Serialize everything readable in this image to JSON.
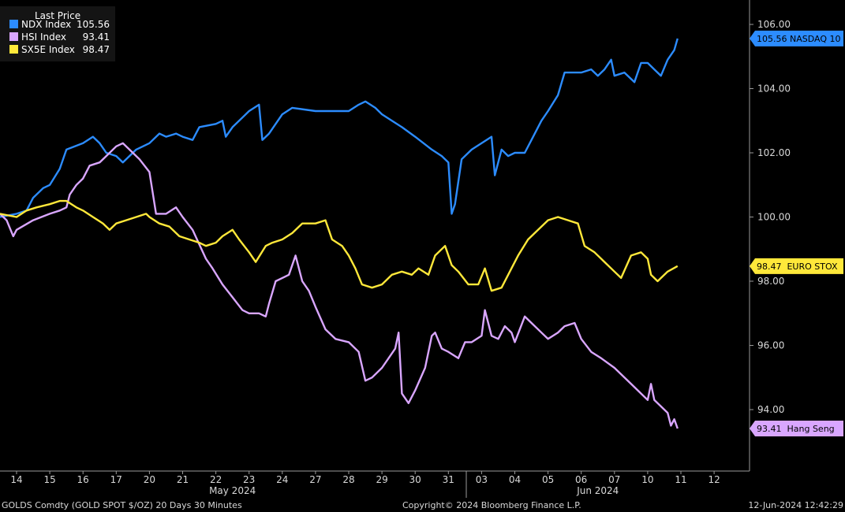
{
  "chart_data": {
    "type": "line",
    "legend": {
      "title": "Last Price",
      "placement": "top-left",
      "entries": [
        {
          "name": "NDX Index",
          "value": "105.56",
          "color": "#2c8cff"
        },
        {
          "name": "HSI Index",
          "value": "93.41",
          "color": "#d9a6ff"
        },
        {
          "name": "SX5E Index",
          "value": "98.47",
          "color": "#ffe83a"
        }
      ]
    },
    "y_axis": {
      "position": "right",
      "range": [
        92.2,
        106.6
      ],
      "ticks": [
        "106.00",
        "104.00",
        "102.00",
        "100.00",
        "98.00",
        "96.00",
        "94.00"
      ],
      "tick_values": [
        106,
        104,
        102,
        100,
        98,
        96,
        94
      ]
    },
    "x_axis": {
      "ticks": [
        "14",
        "15",
        "16",
        "17",
        "20",
        "21",
        "22",
        "23",
        "24",
        "27",
        "28",
        "29",
        "30",
        "31",
        "03",
        "04",
        "05",
        "06",
        "07",
        "10",
        "11",
        "12"
      ],
      "months": [
        {
          "label": "May 2024",
          "from": 0,
          "to": 13
        },
        {
          "label": "Jun 2024",
          "from": 14,
          "to": 21
        }
      ]
    },
    "tags": [
      {
        "text": "105.56 NASDAQ 10",
        "value": 105.56,
        "bg": "#2c8cff",
        "fg": "#ffffff"
      },
      {
        "text": "98.47  EURO STOX",
        "value": 98.47,
        "bg": "#ffe83a",
        "fg": "#000000"
      },
      {
        "text": "93.41  Hang Seng",
        "value": 93.41,
        "bg": "#d9a6ff",
        "fg": "#000000"
      }
    ],
    "series": [
      {
        "name": "NDX Index",
        "color": "#2c8cff",
        "points": [
          [
            -0.5,
            100
          ],
          [
            0,
            100.1
          ],
          [
            0.3,
            100.2
          ],
          [
            0.5,
            100.6
          ],
          [
            0.8,
            100.9
          ],
          [
            1,
            101
          ],
          [
            1.3,
            101.5
          ],
          [
            1.5,
            102.1
          ],
          [
            2,
            102.3
          ],
          [
            2.3,
            102.5
          ],
          [
            2.5,
            102.3
          ],
          [
            2.7,
            102.0
          ],
          [
            3,
            101.9
          ],
          [
            3.2,
            101.7
          ],
          [
            3.4,
            101.9
          ],
          [
            3.6,
            102.1
          ],
          [
            4,
            102.3
          ],
          [
            4.3,
            102.6
          ],
          [
            4.5,
            102.5
          ],
          [
            4.8,
            102.6
          ],
          [
            5,
            102.5
          ],
          [
            5.3,
            102.4
          ],
          [
            5.5,
            102.8
          ],
          [
            6,
            102.9
          ],
          [
            6.2,
            103.0
          ],
          [
            6.3,
            102.5
          ],
          [
            6.5,
            102.8
          ],
          [
            6.8,
            103.1
          ],
          [
            7,
            103.3
          ],
          [
            7.3,
            103.5
          ],
          [
            7.4,
            102.4
          ],
          [
            7.6,
            102.6
          ],
          [
            8,
            103.2
          ],
          [
            8.3,
            103.4
          ],
          [
            9,
            103.3
          ],
          [
            9.5,
            103.3
          ],
          [
            10,
            103.3
          ],
          [
            10.3,
            103.5
          ],
          [
            10.5,
            103.6
          ],
          [
            10.8,
            103.4
          ],
          [
            11,
            103.2
          ],
          [
            11.3,
            103.0
          ],
          [
            11.6,
            102.8
          ],
          [
            12,
            102.5
          ],
          [
            12.5,
            102.1
          ],
          [
            12.8,
            101.9
          ],
          [
            13,
            101.7
          ],
          [
            13.1,
            100.1
          ],
          [
            13.2,
            100.4
          ],
          [
            13.4,
            101.8
          ],
          [
            13.7,
            102.1
          ],
          [
            14,
            102.3
          ],
          [
            14.3,
            102.5
          ],
          [
            14.4,
            101.3
          ],
          [
            14.6,
            102.1
          ],
          [
            14.8,
            101.9
          ],
          [
            15,
            102.0
          ],
          [
            15.3,
            102.0
          ],
          [
            15.5,
            102.4
          ],
          [
            15.8,
            103.0
          ],
          [
            16,
            103.3
          ],
          [
            16.3,
            103.8
          ],
          [
            16.5,
            104.5
          ],
          [
            16.8,
            104.5
          ],
          [
            17,
            104.5
          ],
          [
            17.3,
            104.6
          ],
          [
            17.5,
            104.4
          ],
          [
            17.7,
            104.6
          ],
          [
            17.9,
            104.9
          ],
          [
            18,
            104.4
          ],
          [
            18.3,
            104.5
          ],
          [
            18.6,
            104.2
          ],
          [
            18.8,
            104.8
          ],
          [
            19,
            104.8
          ],
          [
            19.2,
            104.6
          ],
          [
            19.4,
            104.4
          ],
          [
            19.6,
            104.9
          ],
          [
            19.8,
            105.2
          ],
          [
            19.9,
            105.56
          ]
        ]
      },
      {
        "name": "HSI Index",
        "color": "#d9a6ff",
        "points": [
          [
            -0.5,
            100.1
          ],
          [
            -0.3,
            99.9
          ],
          [
            -0.1,
            99.4
          ],
          [
            0,
            99.6
          ],
          [
            0.5,
            99.9
          ],
          [
            1,
            100.1
          ],
          [
            1.3,
            100.2
          ],
          [
            1.5,
            100.3
          ],
          [
            1.6,
            100.7
          ],
          [
            1.8,
            101.0
          ],
          [
            2,
            101.2
          ],
          [
            2.2,
            101.6
          ],
          [
            2.5,
            101.7
          ],
          [
            2.7,
            101.9
          ],
          [
            3,
            102.2
          ],
          [
            3.2,
            102.3
          ],
          [
            3.4,
            102.1
          ],
          [
            3.7,
            101.8
          ],
          [
            4,
            101.4
          ],
          [
            4.2,
            100.1
          ],
          [
            4.5,
            100.1
          ],
          [
            4.8,
            100.3
          ],
          [
            5,
            100.0
          ],
          [
            5.3,
            99.6
          ],
          [
            5.7,
            98.7
          ],
          [
            5.9,
            98.4
          ],
          [
            6.2,
            97.9
          ],
          [
            6.5,
            97.5
          ],
          [
            6.8,
            97.1
          ],
          [
            7,
            97.0
          ],
          [
            7.3,
            97.0
          ],
          [
            7.5,
            96.9
          ],
          [
            7.6,
            97.3
          ],
          [
            7.8,
            98.0
          ],
          [
            8,
            98.1
          ],
          [
            8.2,
            98.2
          ],
          [
            8.4,
            98.8
          ],
          [
            8.6,
            98.0
          ],
          [
            8.8,
            97.7
          ],
          [
            9,
            97.2
          ],
          [
            9.3,
            96.5
          ],
          [
            9.6,
            96.2
          ],
          [
            10,
            96.1
          ],
          [
            10.3,
            95.8
          ],
          [
            10.5,
            94.9
          ],
          [
            10.7,
            95.0
          ],
          [
            11,
            95.3
          ],
          [
            11.4,
            95.9
          ],
          [
            11.5,
            96.4
          ],
          [
            11.6,
            94.5
          ],
          [
            11.8,
            94.2
          ],
          [
            12,
            94.6
          ],
          [
            12.3,
            95.3
          ],
          [
            12.5,
            96.3
          ],
          [
            12.6,
            96.4
          ],
          [
            12.8,
            95.9
          ],
          [
            13,
            95.8
          ],
          [
            13.3,
            95.6
          ],
          [
            13.5,
            96.1
          ],
          [
            13.7,
            96.1
          ],
          [
            14,
            96.3
          ],
          [
            14.1,
            97.1
          ],
          [
            14.3,
            96.3
          ],
          [
            14.5,
            96.2
          ],
          [
            14.7,
            96.6
          ],
          [
            14.9,
            96.4
          ],
          [
            15,
            96.1
          ],
          [
            15.3,
            96.9
          ],
          [
            15.5,
            96.7
          ],
          [
            15.8,
            96.4
          ],
          [
            16,
            96.2
          ],
          [
            16.3,
            96.4
          ],
          [
            16.5,
            96.6
          ],
          [
            16.8,
            96.7
          ],
          [
            17,
            96.2
          ],
          [
            17.3,
            95.8
          ],
          [
            17.6,
            95.6
          ],
          [
            18,
            95.3
          ],
          [
            18.5,
            94.8
          ],
          [
            18.8,
            94.5
          ],
          [
            19,
            94.3
          ],
          [
            19.1,
            94.8
          ],
          [
            19.2,
            94.3
          ],
          [
            19.4,
            94.1
          ],
          [
            19.6,
            93.9
          ],
          [
            19.7,
            93.5
          ],
          [
            19.8,
            93.7
          ],
          [
            19.9,
            93.41
          ]
        ]
      },
      {
        "name": "SX5E Index",
        "color": "#ffe83a",
        "points": [
          [
            -0.5,
            100.1
          ],
          [
            0,
            100.0
          ],
          [
            0.3,
            100.2
          ],
          [
            0.6,
            100.3
          ],
          [
            1,
            100.4
          ],
          [
            1.3,
            100.5
          ],
          [
            1.5,
            100.5
          ],
          [
            1.8,
            100.3
          ],
          [
            2,
            100.2
          ],
          [
            2.3,
            100.0
          ],
          [
            2.6,
            99.8
          ],
          [
            2.8,
            99.6
          ],
          [
            3,
            99.8
          ],
          [
            3.3,
            99.9
          ],
          [
            3.6,
            100.0
          ],
          [
            3.9,
            100.1
          ],
          [
            4,
            100.0
          ],
          [
            4.3,
            99.8
          ],
          [
            4.6,
            99.7
          ],
          [
            4.9,
            99.4
          ],
          [
            5.2,
            99.3
          ],
          [
            5.5,
            99.2
          ],
          [
            5.7,
            99.1
          ],
          [
            6,
            99.2
          ],
          [
            6.2,
            99.4
          ],
          [
            6.5,
            99.6
          ],
          [
            6.7,
            99.3
          ],
          [
            7,
            98.9
          ],
          [
            7.2,
            98.6
          ],
          [
            7.5,
            99.1
          ],
          [
            7.7,
            99.2
          ],
          [
            8,
            99.3
          ],
          [
            8.3,
            99.5
          ],
          [
            8.6,
            99.8
          ],
          [
            9,
            99.8
          ],
          [
            9.3,
            99.9
          ],
          [
            9.5,
            99.3
          ],
          [
            9.8,
            99.1
          ],
          [
            10,
            98.8
          ],
          [
            10.2,
            98.4
          ],
          [
            10.4,
            97.9
          ],
          [
            10.7,
            97.8
          ],
          [
            11,
            97.9
          ],
          [
            11.3,
            98.2
          ],
          [
            11.6,
            98.3
          ],
          [
            11.9,
            98.2
          ],
          [
            12.1,
            98.4
          ],
          [
            12.4,
            98.2
          ],
          [
            12.6,
            98.8
          ],
          [
            12.9,
            99.1
          ],
          [
            13.1,
            98.5
          ],
          [
            13.3,
            98.3
          ],
          [
            13.6,
            97.9
          ],
          [
            13.9,
            97.9
          ],
          [
            14.1,
            98.4
          ],
          [
            14.3,
            97.7
          ],
          [
            14.6,
            97.8
          ],
          [
            14.9,
            98.4
          ],
          [
            15.1,
            98.8
          ],
          [
            15.4,
            99.3
          ],
          [
            15.7,
            99.6
          ],
          [
            16,
            99.9
          ],
          [
            16.3,
            100.0
          ],
          [
            16.6,
            99.9
          ],
          [
            16.9,
            99.8
          ],
          [
            17.1,
            99.1
          ],
          [
            17.4,
            98.9
          ],
          [
            17.7,
            98.6
          ],
          [
            18,
            98.3
          ],
          [
            18.2,
            98.1
          ],
          [
            18.5,
            98.8
          ],
          [
            18.8,
            98.9
          ],
          [
            19,
            98.7
          ],
          [
            19.1,
            98.2
          ],
          [
            19.3,
            98.0
          ],
          [
            19.6,
            98.3
          ],
          [
            19.9,
            98.47
          ]
        ]
      }
    ]
  },
  "footer": {
    "left": "GOLDS Comdty (GOLD SPOT $/OZ) 20 Days 30 Minutes",
    "center": "Copyright© 2024 Bloomberg Finance L.P.",
    "right": "12-Jun-2024 12:42:29"
  }
}
